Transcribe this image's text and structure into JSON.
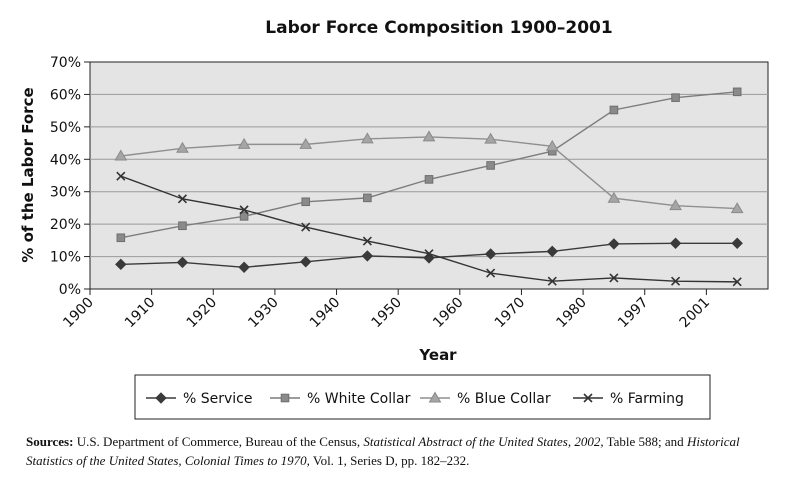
{
  "chart_data": {
    "type": "line",
    "title": "Labor Force Composition 1900–2001",
    "xlabel": "Year",
    "ylabel": "% of the Labor Force",
    "categories": [
      "1900",
      "1910",
      "1920",
      "1930",
      "1940",
      "1950",
      "1960",
      "1970",
      "1980",
      "1997",
      "2001"
    ],
    "y_ticks": [
      "0%",
      "10%",
      "20%",
      "30%",
      "40%",
      "50%",
      "60%",
      "70%"
    ],
    "ylim": [
      0,
      70
    ],
    "grid": true,
    "legend_position": "bottom",
    "series": [
      {
        "name": "% Service",
        "marker": "diamond",
        "values": [
          7.6,
          8.2,
          6.7,
          8.4,
          10.2,
          9.6,
          10.8,
          11.6,
          13.9,
          14.1,
          14.1
        ]
      },
      {
        "name": "% White Collar",
        "marker": "square",
        "values": [
          15.8,
          19.5,
          22.4,
          26.9,
          28.1,
          33.8,
          38.1,
          42.5,
          55.2,
          59.0,
          60.8
        ]
      },
      {
        "name": "% Blue Collar",
        "marker": "triangle",
        "values": [
          41.0,
          43.4,
          44.6,
          44.6,
          46.3,
          46.9,
          46.2,
          44.0,
          28.0,
          25.7,
          24.8
        ]
      },
      {
        "name": "% Farming",
        "marker": "x",
        "values": [
          34.8,
          27.8,
          24.4,
          19.1,
          14.8,
          10.9,
          4.9,
          2.4,
          3.4,
          2.4,
          2.2
        ]
      }
    ]
  },
  "source_note": {
    "label": "Sources:",
    "part1": " U.S. Department of Commerce, Bureau of the Census, ",
    "ital1": "Statistical Abstract of the United States, 2002,",
    "part2": " Table 588; and ",
    "ital2": "Historical Statistics of the United States, Colonial Times to 1970,",
    "part3": " Vol. 1, Series D, pp. 182–232."
  }
}
